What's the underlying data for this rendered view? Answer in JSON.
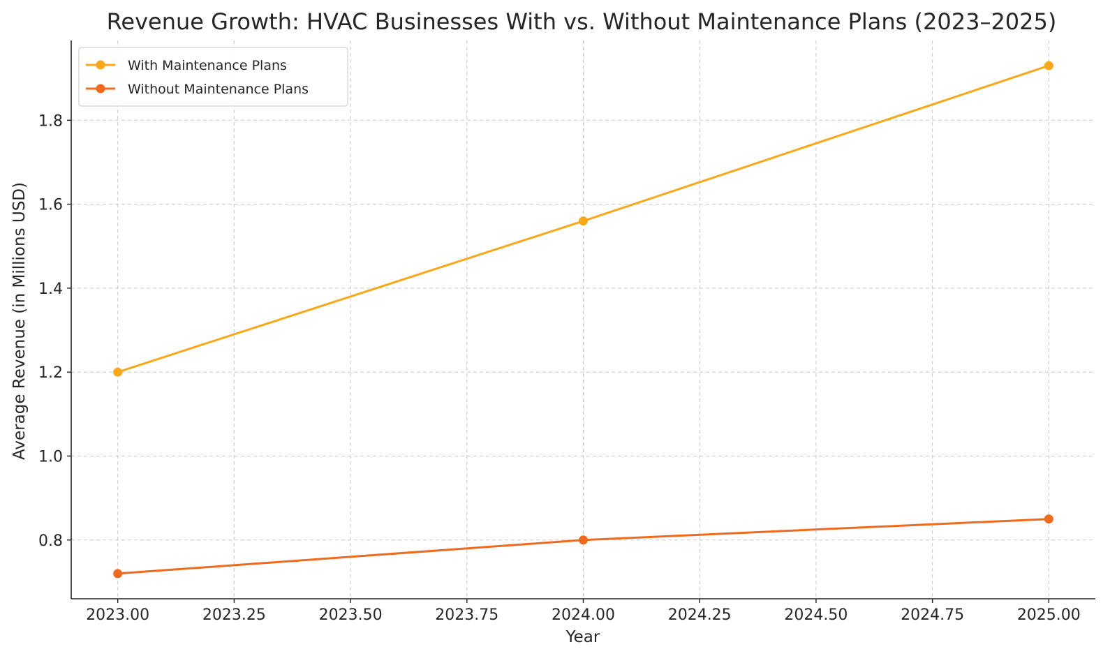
{
  "chart_data": {
    "type": "line",
    "title": "Revenue Growth: HVAC Businesses With vs. Without Maintenance Plans (2023–2025)",
    "xlabel": "Year",
    "ylabel": "Average Revenue (in Millions USD)",
    "xlim": [
      2022.9,
      2025.1
    ],
    "ylim": [
      0.66,
      1.99
    ],
    "x_ticks": [
      2023.0,
      2023.25,
      2023.5,
      2023.75,
      2024.0,
      2024.25,
      2024.5,
      2024.75,
      2025.0
    ],
    "x_tick_labels": [
      "2023.00",
      "2023.25",
      "2023.50",
      "2023.75",
      "2024.00",
      "2024.25",
      "2024.50",
      "2024.75",
      "2025.00"
    ],
    "y_ticks": [
      0.8,
      1.0,
      1.2,
      1.4,
      1.6,
      1.8
    ],
    "y_tick_labels": [
      "0.8",
      "1.0",
      "1.2",
      "1.4",
      "1.6",
      "1.8"
    ],
    "grid": true,
    "legend_position": "top-left",
    "series": [
      {
        "name": "With Maintenance Plans",
        "color": "#F9A81B",
        "x": [
          2023,
          2024,
          2025
        ],
        "y": [
          1.2,
          1.56,
          1.93
        ]
      },
      {
        "name": "Without Maintenance Plans",
        "color": "#EE6A1F",
        "x": [
          2023,
          2024,
          2025
        ],
        "y": [
          0.72,
          0.8,
          0.85
        ]
      }
    ]
  }
}
